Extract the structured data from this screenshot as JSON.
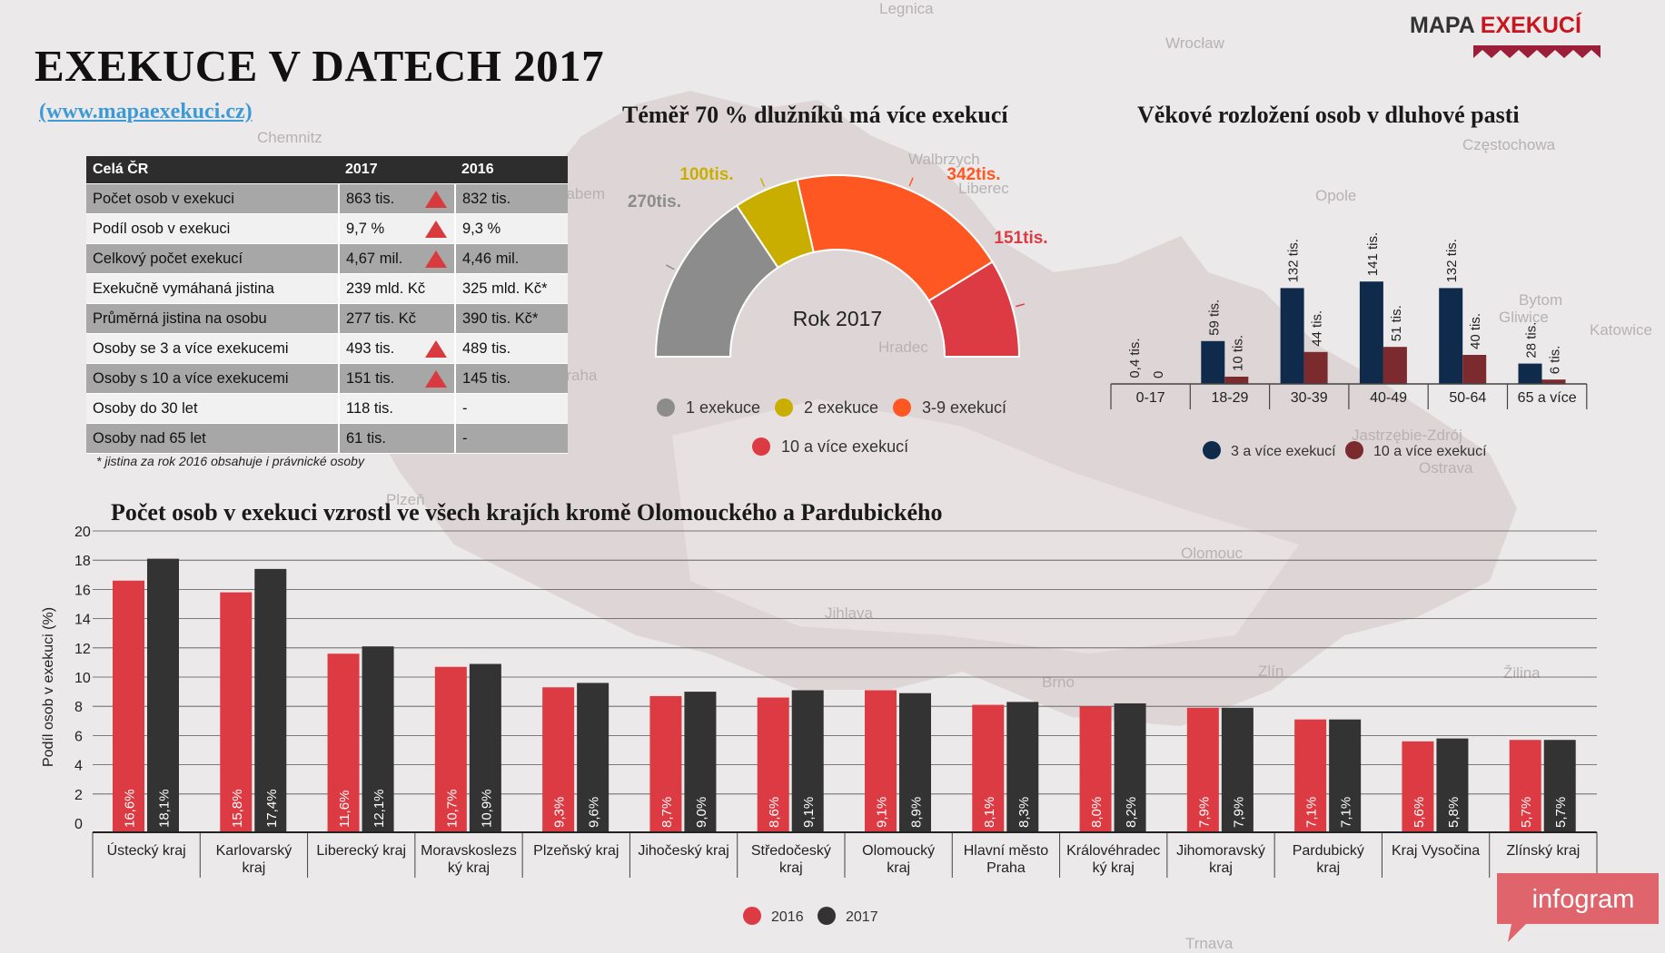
{
  "header": {
    "title": "EXEKUCE V DATECH 2017",
    "url": "(www.mapaexekuci.cz)",
    "brand_main": "MAPA ",
    "brand_accent": "EXEKUCÍ"
  },
  "map_labels": [
    "Legnica",
    "Wrocław",
    "Chemnitz",
    "Częstochowa",
    "Walbrzych",
    "Liberec",
    "Opole",
    "Bytom",
    "Katowice",
    "Gliwice",
    "Hradec",
    "Jastrzębie-Zdrój",
    "Ostrava",
    "Olomouc",
    "Jihlava",
    "Brno",
    "Zlín",
    "Žilina",
    "Plzeň",
    "Trnava",
    "Praha",
    "Labem"
  ],
  "stats_table": {
    "headers": [
      "Celá ČR",
      "2017",
      "2016"
    ],
    "rows": [
      {
        "label": "Počet osob v exekuci",
        "v2017": "863 tis.",
        "v2016": "832 tis.",
        "up": true
      },
      {
        "label": "Podíl osob v exekuci",
        "v2017": "9,7 %",
        "v2016": "9,3 %",
        "up": true
      },
      {
        "label": "Celkový počet exekucí",
        "v2017": "4,67 mil.",
        "v2016": "4,46 mil.",
        "up": true
      },
      {
        "label": "Exekučně vymáhaná jistina",
        "v2017": "239 mld. Kč",
        "v2016": "325 mld. Kč*",
        "up": false
      },
      {
        "label": "Průměrná jistina na osobu",
        "v2017": "277 tis. Kč",
        "v2016": "390 tis. Kč*",
        "up": false
      },
      {
        "label": "Osoby se 3 a více exekucemi",
        "v2017": "493 tis.",
        "v2016": "489 tis.",
        "up": true
      },
      {
        "label": "Osoby s 10 a více exekucemi",
        "v2017": "151 tis.",
        "v2016": "145 tis.",
        "up": true
      },
      {
        "label": "Osoby do 30 let",
        "v2017": "118 tis.",
        "v2016": "-",
        "up": false
      },
      {
        "label": "Osoby nad 65 let",
        "v2017": "61 tis.",
        "v2016": "-",
        "up": false
      }
    ],
    "note": "* jistina za rok 2016 obsahuje i právnické osoby",
    "up_color": "#d93a3f"
  },
  "chart_data": [
    {
      "type": "pie",
      "variant": "half-donut",
      "title": "Téměř 70 % dlužníků má více exekucí",
      "center_label": "Rok 2017",
      "slices": [
        {
          "name": "1 exekuce",
          "value": 270,
          "label": "270tis.",
          "color": "#8c8c8c"
        },
        {
          "name": "2 exekuce",
          "value": 100,
          "label": "100tis.",
          "color": "#c9ae00"
        },
        {
          "name": "3-9 exekucí",
          "value": 342,
          "label": "342tis.",
          "color": "#ff5722"
        },
        {
          "name": "10 a více exekucí",
          "value": 151,
          "label": "151tis.",
          "color": "#dd3b43"
        }
      ],
      "legend_placement": "bottom"
    },
    {
      "type": "bar",
      "title": "Věkové rozložení osob v dluhové pasti",
      "categories": [
        "0-17",
        "18-29",
        "30-39",
        "40-49",
        "50-64",
        "65 a více"
      ],
      "series": [
        {
          "name": "3 a více exekucí",
          "color": "#0f2a4a",
          "values": [
            0.4,
            59,
            132,
            141,
            132,
            28
          ],
          "labels": [
            "0,4 tis.",
            "59 tis.",
            "132 tis.",
            "141 tis.",
            "132 tis.",
            "28 tis."
          ]
        },
        {
          "name": "10 a více exekucí",
          "color": "#7b2a2e",
          "values": [
            0,
            10,
            44,
            51,
            40,
            6
          ],
          "labels": [
            "0",
            "10 tis.",
            "44 tis.",
            "51 tis.",
            "40 tis.",
            "6 tis."
          ]
        }
      ],
      "ylim": [
        0,
        150
      ],
      "legend_placement": "bottom"
    },
    {
      "type": "bar",
      "title": "Počet osob v exekuci vzrostl ve všech krajích kromě Olomouckého a Pardubického",
      "ylabel": "Podíl osob v exekuci (%)",
      "ylim": [
        0,
        20
      ],
      "yticks": [
        0,
        2,
        4,
        6,
        8,
        10,
        12,
        14,
        16,
        18,
        20
      ],
      "grid": true,
      "categories": [
        "Ústecký kraj",
        "Karlovarský kraj",
        "Liberecký kraj",
        "Moravskoslezský kraj",
        "Plzeňský kraj",
        "Jihočeský kraj",
        "Středočeský kraj",
        "Olomoucký kraj",
        "Hlavní město Praha",
        "Královéhradecký kraj",
        "Jihomoravský kraj",
        "Pardubický kraj",
        "Kraj Vysočina",
        "Zlínský kraj"
      ],
      "category_lines": [
        [
          "Ústecký kraj"
        ],
        [
          "Karlovarský",
          "kraj"
        ],
        [
          "Liberecký kraj"
        ],
        [
          "Moravskoslezs",
          "ký kraj"
        ],
        [
          "Plzeňský kraj"
        ],
        [
          "Jihočeský kraj"
        ],
        [
          "Středočeský",
          "kraj"
        ],
        [
          "Olomoucký",
          "kraj"
        ],
        [
          "Hlavní město",
          "Praha"
        ],
        [
          "Královéhradec",
          "ký kraj"
        ],
        [
          "Jihomoravský",
          "kraj"
        ],
        [
          "Pardubický",
          "kraj"
        ],
        [
          "Kraj Vysočina"
        ],
        [
          "Zlínský kraj"
        ]
      ],
      "series": [
        {
          "name": "2016",
          "color": "#dd3b43",
          "values": [
            16.6,
            15.8,
            11.6,
            10.7,
            9.3,
            8.7,
            8.6,
            9.1,
            8.1,
            8.0,
            7.9,
            7.1,
            5.6,
            5.7
          ],
          "labels": [
            "16,6%",
            "15,8%",
            "11,6%",
            "10,7%",
            "9,3%",
            "8,7%",
            "8,6%",
            "9,1%",
            "8,1%",
            "8,0%",
            "7,9%",
            "7,1%",
            "5,6%",
            "5,7%"
          ]
        },
        {
          "name": "2017",
          "color": "#333333",
          "values": [
            18.1,
            17.4,
            12.1,
            10.9,
            9.6,
            9.0,
            9.1,
            8.9,
            8.3,
            8.2,
            7.9,
            7.1,
            5.8,
            5.7
          ],
          "labels": [
            "18,1%",
            "17,4%",
            "12,1%",
            "10,9%",
            "9,6%",
            "9,0%",
            "9,1%",
            "8,9%",
            "8,3%",
            "8,2%",
            "7,9%",
            "7,1%",
            "5,8%",
            "5,7%"
          ]
        }
      ],
      "legend_placement": "bottom"
    }
  ],
  "footer": {
    "logo_text": "infogram",
    "logo_color": "#e0646c"
  }
}
